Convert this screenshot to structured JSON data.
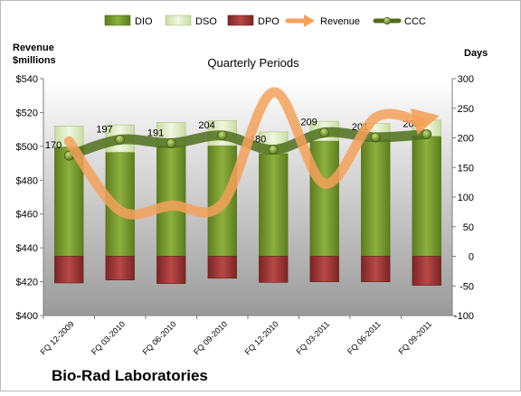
{
  "chart_data": {
    "type": "bar",
    "title": "Quarterly Periods",
    "company": "Bio-Rad Laboratories",
    "left_axis_label_line1": "Revenue",
    "left_axis_label_line2": "$millions",
    "right_axis_label": "Days",
    "categories": [
      "FQ 12-2009",
      "FQ 03-2010",
      "FQ 06-2010",
      "FQ 09-2010",
      "FQ 12-2010",
      "FQ 03-2011",
      "FQ 06-2011",
      "FQ 09-2011"
    ],
    "left_axis": {
      "min": 400,
      "max": 540,
      "step": 20,
      "ticks": [
        "$400",
        "$420",
        "$440",
        "$460",
        "$480",
        "$500",
        "$520",
        "$540"
      ]
    },
    "right_axis": {
      "min": -100,
      "max": 300,
      "step": 50
    },
    "legend_position": "top",
    "series": [
      {
        "name": "DIO",
        "kind": "stacked-bar-positive",
        "color": "#7a9a2c",
        "values": [
          185,
          176,
          187,
          187,
          174,
          195,
          197,
          203
        ]
      },
      {
        "name": "DSO",
        "kind": "stacked-bar-positive",
        "color": "#e2efc6",
        "values": [
          35,
          46,
          39,
          42,
          36,
          33,
          27,
          27
        ]
      },
      {
        "name": "DPO",
        "kind": "negative-bar",
        "color": "#a23a3a",
        "values": [
          -45,
          -40,
          -46,
          -37,
          -44,
          -43,
          -43,
          -49
        ]
      },
      {
        "name": "Revenue",
        "kind": "line-left-axis",
        "color": "#f5a15a",
        "values": [
          503,
          462,
          465,
          466,
          532,
          478,
          517,
          516
        ]
      },
      {
        "name": "CCC",
        "kind": "line-right-axis",
        "color": "#4f6e1c",
        "values": [
          170,
          197,
          191,
          204,
          180,
          209,
          201,
          206
        ],
        "labels": [
          "170",
          "197",
          "191",
          "204",
          "180",
          "209",
          "201",
          "206"
        ]
      }
    ]
  }
}
